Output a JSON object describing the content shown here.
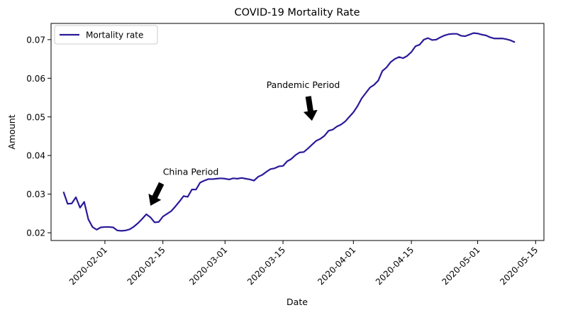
{
  "chart_data": {
    "type": "line",
    "title": "COVID-19 Mortality Rate",
    "xlabel": "Date",
    "ylabel": "Amount",
    "x_range": [
      "2020-01-19",
      "2020-05-17"
    ],
    "ylim": [
      0.018,
      0.0742
    ],
    "grid": false,
    "legend_position": "top-left",
    "x_ticks": [
      "2020-02-01",
      "2020-02-15",
      "2020-03-01",
      "2020-03-15",
      "2020-04-01",
      "2020-04-15",
      "2020-05-01",
      "2020-05-15"
    ],
    "y_ticks": [
      "0.02",
      "0.03",
      "0.04",
      "0.05",
      "0.06",
      "0.07"
    ],
    "series": [
      {
        "name": "Mortality rate",
        "color": "#2a1a9a",
        "x": [
          "2020-01-22",
          "2020-01-23",
          "2020-01-24",
          "2020-01-25",
          "2020-01-26",
          "2020-01-27",
          "2020-01-28",
          "2020-01-29",
          "2020-01-30",
          "2020-01-31",
          "2020-02-01",
          "2020-02-02",
          "2020-02-03",
          "2020-02-04",
          "2020-02-05",
          "2020-02-06",
          "2020-02-07",
          "2020-02-08",
          "2020-02-09",
          "2020-02-10",
          "2020-02-11",
          "2020-02-12",
          "2020-02-13",
          "2020-02-14",
          "2020-02-15",
          "2020-02-16",
          "2020-02-17",
          "2020-02-18",
          "2020-02-19",
          "2020-02-20",
          "2020-02-21",
          "2020-02-22",
          "2020-02-23",
          "2020-02-24",
          "2020-02-25",
          "2020-02-26",
          "2020-02-27",
          "2020-02-28",
          "2020-02-29",
          "2020-03-01",
          "2020-03-02",
          "2020-03-03",
          "2020-03-04",
          "2020-03-05",
          "2020-03-06",
          "2020-03-07",
          "2020-03-08",
          "2020-03-09",
          "2020-03-10",
          "2020-03-11",
          "2020-03-12",
          "2020-03-13",
          "2020-03-14",
          "2020-03-15",
          "2020-03-16",
          "2020-03-17",
          "2020-03-18",
          "2020-03-19",
          "2020-03-20",
          "2020-03-21",
          "2020-03-22",
          "2020-03-23",
          "2020-03-24",
          "2020-03-25",
          "2020-03-26",
          "2020-03-27",
          "2020-03-28",
          "2020-03-29",
          "2020-03-30",
          "2020-03-31",
          "2020-04-01",
          "2020-04-02",
          "2020-04-03",
          "2020-04-04",
          "2020-04-05",
          "2020-04-06",
          "2020-04-07",
          "2020-04-08",
          "2020-04-09",
          "2020-04-10",
          "2020-04-11",
          "2020-04-12",
          "2020-04-13",
          "2020-04-14",
          "2020-04-15",
          "2020-04-16",
          "2020-04-17",
          "2020-04-18",
          "2020-04-19",
          "2020-04-20",
          "2020-04-21",
          "2020-04-22",
          "2020-04-23",
          "2020-04-24",
          "2020-04-25",
          "2020-04-26",
          "2020-04-27",
          "2020-04-28",
          "2020-04-29",
          "2020-04-30",
          "2020-05-01",
          "2020-05-02",
          "2020-05-03",
          "2020-05-04",
          "2020-05-05",
          "2020-05-06",
          "2020-05-07",
          "2020-05-08",
          "2020-05-09",
          "2020-05-10"
        ],
        "values": [
          0.0306,
          0.0275,
          0.0276,
          0.0292,
          0.0265,
          0.028,
          0.0235,
          0.0215,
          0.0208,
          0.0214,
          0.0215,
          0.0215,
          0.0214,
          0.0206,
          0.0205,
          0.0206,
          0.0209,
          0.0216,
          0.0225,
          0.0236,
          0.0248,
          0.024,
          0.0227,
          0.0228,
          0.0242,
          0.0249,
          0.0256,
          0.0268,
          0.0281,
          0.0295,
          0.0293,
          0.0312,
          0.0312,
          0.033,
          0.0335,
          0.0339,
          0.0339,
          0.034,
          0.0341,
          0.034,
          0.0338,
          0.0341,
          0.034,
          0.0342,
          0.034,
          0.0338,
          0.0335,
          0.0345,
          0.035,
          0.0358,
          0.0365,
          0.0367,
          0.0372,
          0.0373,
          0.0385,
          0.0391,
          0.0401,
          0.0408,
          0.0409,
          0.0418,
          0.0428,
          0.0438,
          0.0443,
          0.0451,
          0.0464,
          0.0467,
          0.0475,
          0.048,
          0.0488,
          0.05,
          0.0512,
          0.0528,
          0.0548,
          0.0562,
          0.0576,
          0.0583,
          0.0594,
          0.0619,
          0.0628,
          0.0642,
          0.065,
          0.0655,
          0.0652,
          0.0658,
          0.0668,
          0.0683,
          0.0687,
          0.07,
          0.0704,
          0.0699,
          0.07,
          0.0706,
          0.0711,
          0.0714,
          0.0715,
          0.0715,
          0.071,
          0.0709,
          0.0713,
          0.0717,
          0.0716,
          0.0713,
          0.0711,
          0.0706,
          0.0703,
          0.0703,
          0.0703,
          0.0701,
          0.0698,
          0.0693
        ]
      }
    ],
    "annotations": [
      {
        "text": "China Period",
        "text_at": [
          "2020-02-15",
          0.035
        ],
        "arrow_tip": [
          "2020-02-12",
          0.027
        ]
      },
      {
        "text": "Pandemic Period",
        "text_at": [
          "2020-03-11",
          0.0575
        ],
        "arrow_tip": [
          "2020-03-22",
          0.049
        ]
      }
    ]
  }
}
